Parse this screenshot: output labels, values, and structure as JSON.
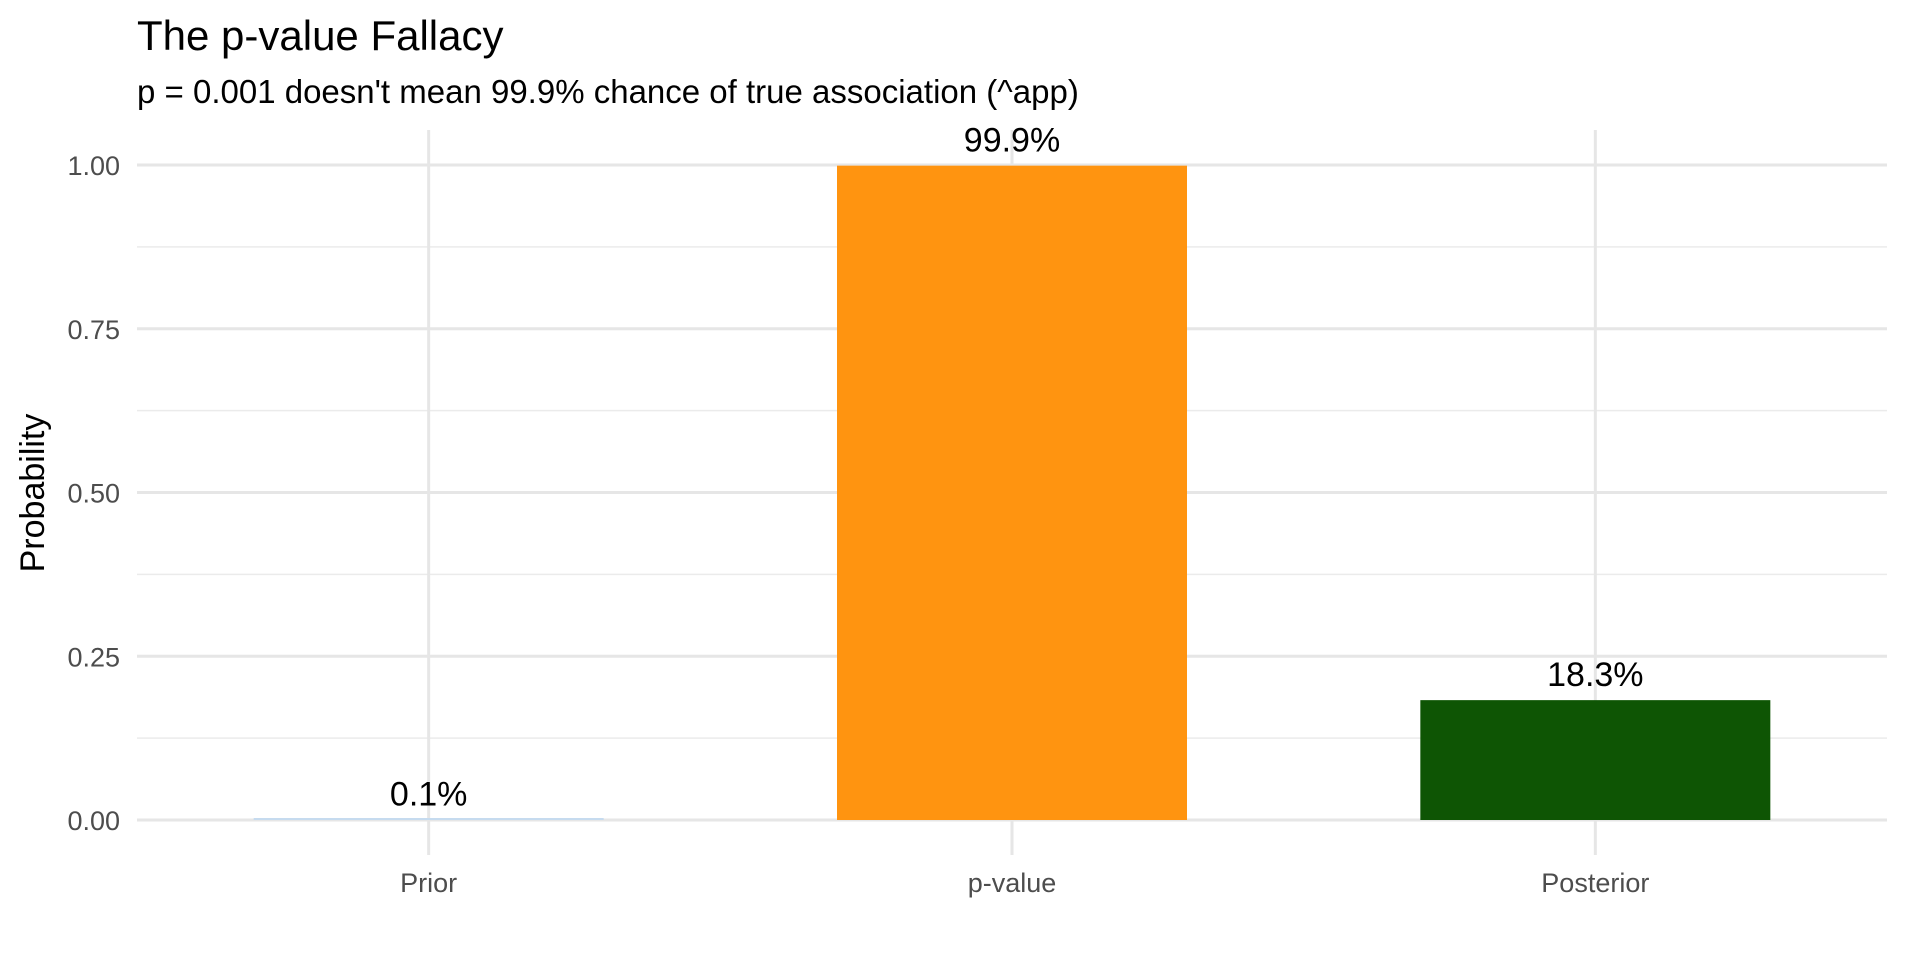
{
  "chart_data": {
    "type": "bar",
    "title": "The p-value Fallacy",
    "subtitle": "p = 0.001 doesn't mean 99.9% chance of true association (^app)",
    "xlabel": "",
    "ylabel": "Probability",
    "categories": [
      "Prior",
      "p-value",
      "Posterior"
    ],
    "values": [
      0.001,
      0.999,
      0.183
    ],
    "data_labels": [
      "0.1%",
      "99.9%",
      "18.3%"
    ],
    "colors": [
      "#c6dbef",
      "#ff9410",
      "#0e5504"
    ],
    "ylim": [
      0,
      1.0
    ],
    "y_ticks": [
      0,
      0.25,
      0.5,
      0.75,
      1.0
    ],
    "y_tick_labels": [
      "0.00",
      "0.25",
      "0.50",
      "0.75",
      "1.00"
    ],
    "grid": true,
    "legend": "none"
  }
}
